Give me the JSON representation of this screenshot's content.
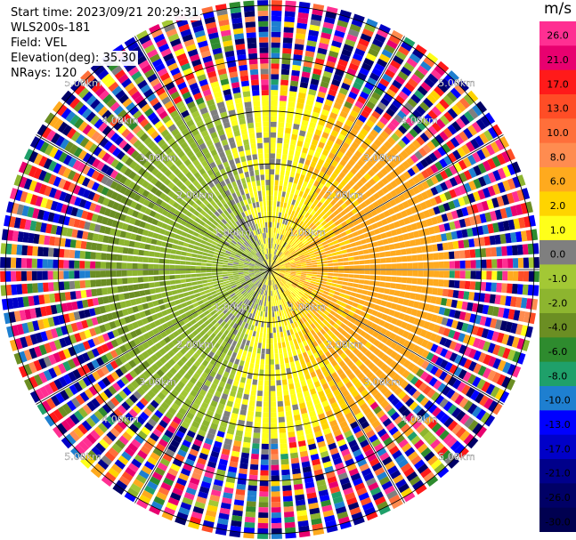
{
  "info": {
    "start_time": "Start time: 2023/09/21 20:29:31",
    "instrument": "WLS200s-181",
    "field": "Field: VEL",
    "elevation": "Elevation(deg): 35.30",
    "nrays": "NRays: 120"
  },
  "colorbar": {
    "unit": "m/s",
    "levels": [
      {
        "label": "26.0",
        "color": "#ff2f92"
      },
      {
        "label": "21.0",
        "color": "#e8006f"
      },
      {
        "label": "17.0",
        "color": "#ff1a1a"
      },
      {
        "label": "13.0",
        "color": "#ff4d26"
      },
      {
        "label": "10.0",
        "color": "#ff6f3a"
      },
      {
        "label": "8.0",
        "color": "#ff8c50"
      },
      {
        "label": "6.0",
        "color": "#ffaa1e"
      },
      {
        "label": "2.0",
        "color": "#ffd400"
      },
      {
        "label": "1.0",
        "color": "#ffff1a"
      },
      {
        "label": "0.0",
        "color": "#7f7f7f"
      },
      {
        "label": "-1.0",
        "color": "#a3c835"
      },
      {
        "label": "-2.0",
        "color": "#8db52f"
      },
      {
        "label": "-4.0",
        "color": "#6b8e23"
      },
      {
        "label": "-6.0",
        "color": "#2e8b2e"
      },
      {
        "label": "-8.0",
        "color": "#1fa06a"
      },
      {
        "label": "-10.0",
        "color": "#1e7fd0"
      },
      {
        "label": "-13.0",
        "color": "#0000ff"
      },
      {
        "label": "-17.0",
        "color": "#0000c8"
      },
      {
        "label": "-21.0",
        "color": "#00008b"
      },
      {
        "label": "-26.0",
        "color": "#000066"
      },
      {
        "label": "-30.0",
        "color": "#000050"
      }
    ]
  },
  "chart_data": {
    "type": "heatmap",
    "projection": "polar (PPI)",
    "nrays": 120,
    "range_rings_km": [
      1.0,
      2.0,
      3.0,
      4.0,
      5.0
    ],
    "ring_labels": [
      "1.00km",
      "2.00km",
      "3.00km",
      "4.00km",
      "5.00km"
    ],
    "max_range_km": 5.1,
    "spokes_deg": [
      0,
      30,
      60,
      90,
      120,
      150,
      180,
      210,
      240,
      270,
      300,
      330
    ],
    "value_field": "VEL",
    "units": "m/s",
    "value_range": [
      -30,
      26
    ],
    "pattern_description": "inner ~3.3 km: positive velocities (yellow/orange) to the east, negative (green) to the west, near-zero (gray) along north-south; outer ranges noisy, all colors"
  }
}
